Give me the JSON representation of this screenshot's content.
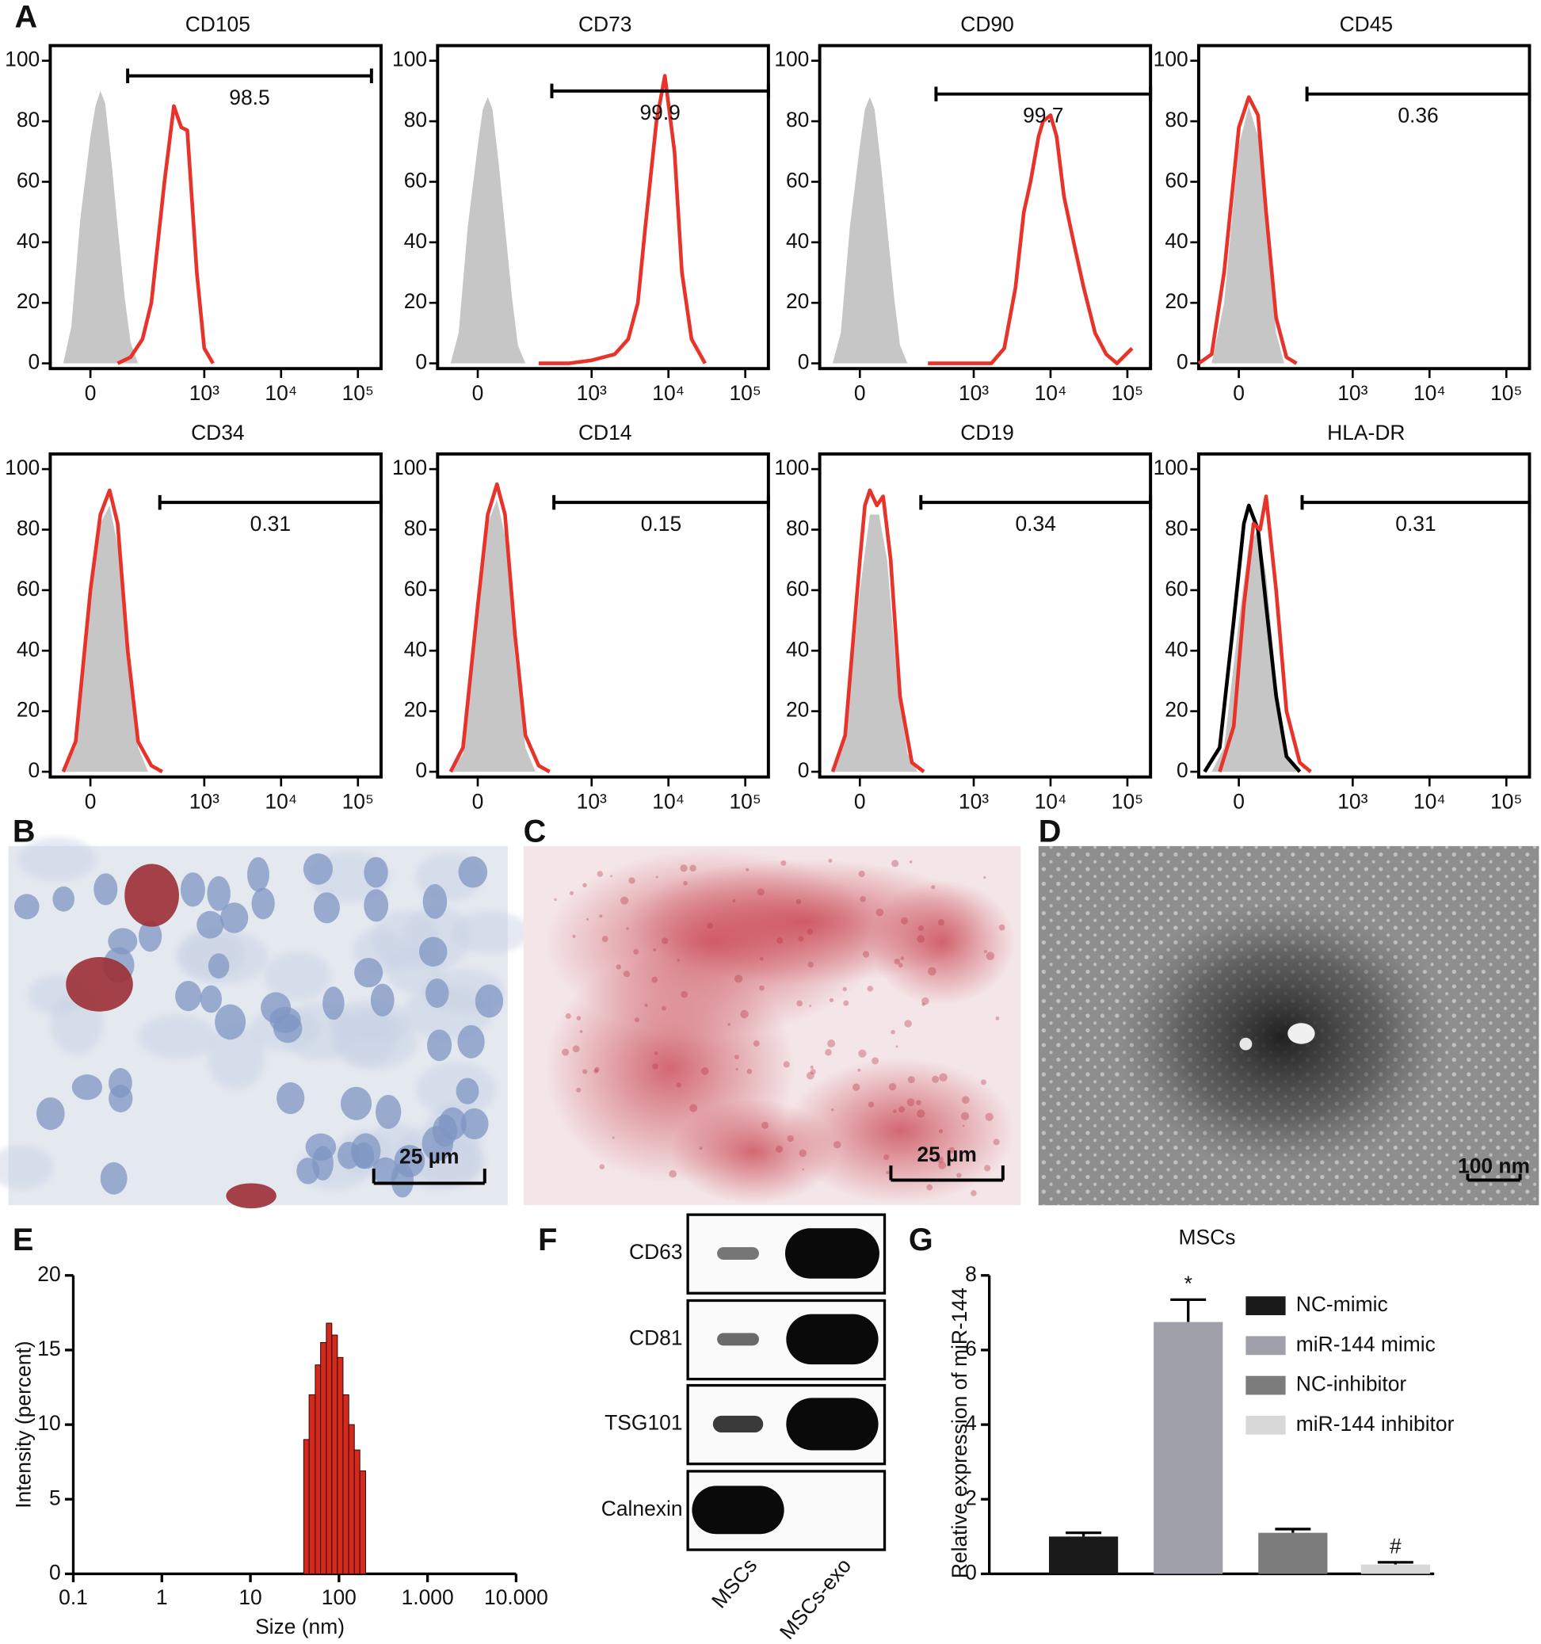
{
  "panel_labels": [
    "A",
    "B",
    "C",
    "D",
    "E",
    "F",
    "G"
  ],
  "chart_data": [
    {
      "type": "flow",
      "xscale": "biexponential",
      "xlim": [
        -100,
        200000
      ],
      "ylim": [
        0,
        105
      ],
      "xticks": [
        0,
        {
          "value": 1000,
          "label": "10³"
        },
        {
          "value": 10000,
          "label": "10⁴"
        },
        {
          "value": 100000,
          "label": "10⁵"
        }
      ],
      "yticks": [
        0,
        20,
        40,
        60,
        80,
        100
      ],
      "panels": [
        {
          "title": "CD105",
          "gate": {
            "x": [
              90,
              150000
            ],
            "y": 95,
            "label": 98.5
          },
          "series": [
            {
              "color": "#c6c6c6",
              "filled": true,
              "x": [
                -60,
                -40,
                -20,
                0,
                10,
                20,
                30,
                45,
                60,
                80,
                100,
                130
              ],
              "values": [
                0,
                12,
                48,
                75,
                85,
                90,
                86,
                66,
                45,
                22,
                7,
                0
              ]
            },
            {
              "color": "#e8332a",
              "x": [
                60,
                100,
                150,
                200,
                300,
                400,
                500,
                600,
                800,
                1000,
                1300
              ],
              "values": [
                0,
                2,
                8,
                20,
                60,
                85,
                78,
                77,
                30,
                5,
                0
              ]
            }
          ]
        },
        {
          "title": "CD73",
          "gate": {
            "x": [
              300,
              200000
            ],
            "y": 90,
            "label": 99.9
          },
          "series": [
            {
              "color": "#c6c6c6",
              "filled": true,
              "x": [
                -60,
                -40,
                -20,
                0,
                10,
                20,
                30,
                45,
                60,
                80,
                100,
                130
              ],
              "values": [
                0,
                10,
                45,
                72,
                84,
                88,
                84,
                65,
                45,
                22,
                6,
                0
              ]
            },
            {
              "color": "#e8332a",
              "x": [
                200,
                500,
                1000,
                2000,
                3000,
                4000,
                5000,
                7000,
                9000,
                12000,
                15000,
                20000,
                30000
              ],
              "values": [
                0,
                0,
                1,
                3,
                8,
                20,
                45,
                80,
                95,
                70,
                30,
                8,
                0
              ]
            }
          ]
        },
        {
          "title": "CD90",
          "gate": {
            "x": [
              320,
              200000
            ],
            "y": 89,
            "label": 99.7
          },
          "series": [
            {
              "color": "#c6c6c6",
              "filled": true,
              "x": [
                -60,
                -40,
                -20,
                0,
                10,
                20,
                30,
                45,
                60,
                80,
                100,
                130
              ],
              "values": [
                0,
                10,
                45,
                72,
                84,
                88,
                84,
                65,
                45,
                22,
                6,
                0
              ]
            },
            {
              "color": "#e8332a",
              "x": [
                250,
                1700,
                2500,
                3500,
                4500,
                5500,
                7000,
                8000,
                10000,
                12000,
                15000,
                20000,
                27000,
                38000,
                53000,
                73000,
                115000
              ],
              "values": [
                0,
                0,
                5,
                25,
                50,
                60,
                75,
                80,
                82,
                75,
                55,
                40,
                25,
                10,
                3,
                0,
                5
              ]
            }
          ]
        },
        {
          "title": "CD45",
          "gate": {
            "x": [
              250,
              200000
            ],
            "y": 89,
            "label": 0.36
          },
          "series": [
            {
              "color": "#c6c6c6",
              "filled": true,
              "x": [
                -60,
                -30,
                0,
                20,
                40,
                60,
                90,
                120
              ],
              "values": [
                0,
                20,
                72,
                85,
                75,
                45,
                10,
                0
              ]
            },
            {
              "color": "#e8332a",
              "x": [
                -100,
                -60,
                -30,
                0,
                20,
                40,
                60,
                90,
                130,
                180
              ],
              "values": [
                0,
                3,
                30,
                78,
                88,
                82,
                50,
                15,
                2,
                0
              ]
            }
          ]
        },
        {
          "title": "CD34",
          "gate": {
            "x": [
              260,
              200000
            ],
            "y": 89,
            "label": 0.31
          },
          "series": [
            {
              "color": "#c6c6c6",
              "filled": true,
              "x": [
                -60,
                -30,
                0,
                20,
                40,
                60,
                90,
                130,
                180
              ],
              "values": [
                0,
                8,
                55,
                82,
                88,
                75,
                35,
                8,
                0
              ]
            },
            {
              "color": "#e8332a",
              "x": [
                -60,
                -30,
                0,
                20,
                40,
                60,
                90,
                130,
                200,
                280
              ],
              "values": [
                0,
                10,
                60,
                85,
                93,
                82,
                40,
                10,
                2,
                0
              ]
            }
          ]
        },
        {
          "title": "CD14",
          "gate": {
            "x": [
              320,
              200000
            ],
            "y": 89,
            "label": 0.15
          },
          "series": [
            {
              "color": "#c6c6c6",
              "filled": true,
              "x": [
                -60,
                -30,
                0,
                20,
                40,
                60,
                90,
                130,
                180
              ],
              "values": [
                0,
                6,
                50,
                82,
                90,
                78,
                38,
                8,
                0
              ]
            },
            {
              "color": "#e8332a",
              "x": [
                -60,
                -30,
                0,
                20,
                40,
                60,
                90,
                130,
                200,
                280
              ],
              "values": [
                0,
                8,
                55,
                85,
                95,
                85,
                45,
                12,
                2,
                0
              ]
            }
          ]
        },
        {
          "title": "CD19",
          "gate": {
            "x": [
              200,
              200000
            ],
            "y": 89,
            "label": 0.34
          },
          "series": [
            {
              "color": "#c6c6c6",
              "filled": true,
              "x": [
                -60,
                -30,
                0,
                20,
                40,
                60,
                90,
                130,
                180
              ],
              "values": [
                0,
                10,
                60,
                85,
                85,
                70,
                30,
                6,
                0
              ]
            },
            {
              "color": "#e8332a",
              "x": [
                -60,
                -30,
                0,
                10,
                20,
                35,
                50,
                70,
                100,
                150,
                220
              ],
              "values": [
                0,
                12,
                70,
                88,
                93,
                88,
                91,
                70,
                25,
                3,
                0
              ]
            }
          ]
        },
        {
          "title": "HLA-DR",
          "gate": {
            "x": [
              215,
              200000
            ],
            "y": 89,
            "label": 0.31
          },
          "series": [
            {
              "color": "#c6c6c6",
              "filled": true,
              "x": [
                -60,
                -30,
                0,
                20,
                40,
                60,
                90,
                130,
                180
              ],
              "values": [
                0,
                8,
                50,
                75,
                80,
                65,
                30,
                6,
                0
              ]
            },
            {
              "color": "#000000",
              "x": [
                -80,
                -40,
                -10,
                10,
                20,
                40,
                60,
                90,
                130,
                200
              ],
              "values": [
                0,
                8,
                50,
                82,
                88,
                80,
                55,
                25,
                5,
                0
              ]
            },
            {
              "color": "#e8332a",
              "x": [
                -40,
                -10,
                10,
                30,
                45,
                60,
                90,
                130,
                200,
                280
              ],
              "values": [
                0,
                15,
                55,
                82,
                80,
                91,
                60,
                20,
                3,
                0
              ]
            }
          ]
        }
      ]
    },
    {
      "type": "histogram",
      "xscale": "log",
      "xlabel": "Size (nm)",
      "ylabel": "Intensity (percent)",
      "color": "#d42a1e",
      "bins": [
        40,
        46,
        54,
        62,
        72,
        83,
        96,
        111,
        129,
        149,
        172,
        200
      ],
      "values": [
        9,
        12,
        14,
        15.5,
        16.8,
        16,
        14.5,
        12,
        10,
        8.3,
        6.9
      ],
      "xlim": [
        0.1,
        10000
      ],
      "xticks": [
        0.1,
        1,
        10,
        100,
        {
          "value": 1000,
          "label": "1.000"
        },
        {
          "value": 10000,
          "label": "10.000"
        }
      ],
      "ylim": [
        0,
        20
      ],
      "yticks": [
        0,
        5,
        10,
        15,
        20
      ]
    },
    {
      "type": "bar",
      "title": "MSCs",
      "ylabel": "Relative expression of miR-144",
      "ylim": [
        0,
        8
      ],
      "yticks": [
        0,
        2,
        4,
        6,
        8
      ],
      "series": [
        {
          "name": "NC-mimic",
          "color": "#1a1a1a",
          "values": [
            1.0
          ],
          "errors": [
            0.1
          ]
        },
        {
          "name": "miR-144 mimic",
          "color": "#a0a0aa",
          "values": [
            6.75
          ],
          "errors": [
            0.6
          ],
          "annotation": "*"
        },
        {
          "name": "NC-inhibitor",
          "color": "#7c7c7c",
          "values": [
            1.1
          ],
          "errors": [
            0.1
          ]
        },
        {
          "name": "miR-144 inhibitor",
          "color": "#d8d8d8",
          "values": [
            0.25
          ],
          "errors": [
            0.06
          ],
          "annotation": "#"
        }
      ]
    }
  ],
  "images": [
    {
      "scale_bar": "25 µm"
    },
    {
      "scale_bar": "25 µm"
    },
    {
      "scale_bar": "100 nm"
    }
  ],
  "blot": {
    "rows": [
      "CD63",
      "CD81",
      "TSG101",
      "Calnexin"
    ],
    "lanes": [
      "MSCs",
      "MSCs-exo"
    ]
  }
}
